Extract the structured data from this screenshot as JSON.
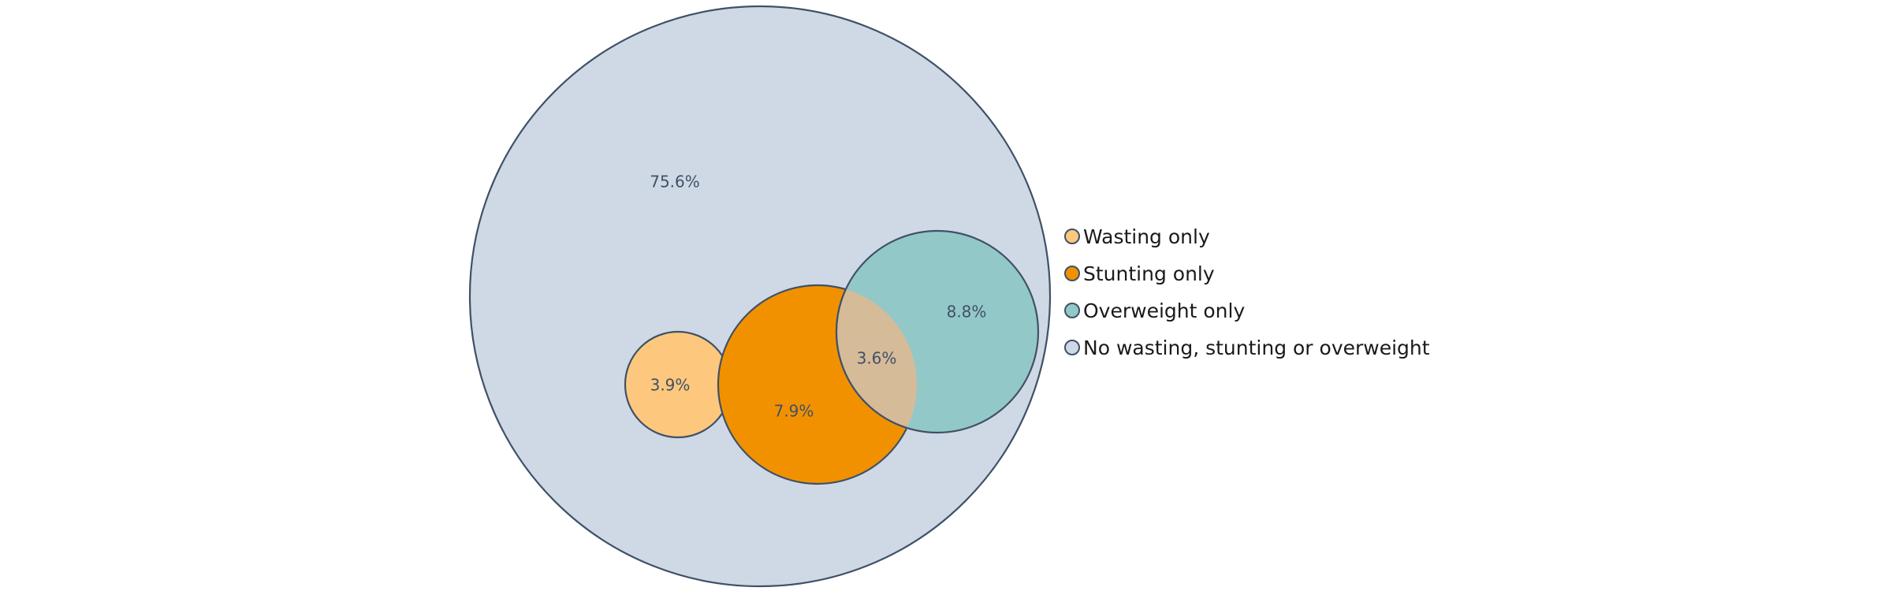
{
  "chart_data": {
    "type": "venn",
    "title": "",
    "sets": [
      {
        "key": "none",
        "name": "No wasting, stunting or overweight",
        "value": 75.6,
        "label": "75.6%",
        "color": "#cfd9e5"
      },
      {
        "key": "wasting",
        "name": "Wasting only",
        "value": 3.9,
        "label": "3.9%",
        "color": "#fdc87d"
      },
      {
        "key": "stunting",
        "name": "Stunting only",
        "value": 7.9,
        "label": "7.9%",
        "color": "#f29100"
      },
      {
        "key": "overweight",
        "name": "Overweight only",
        "value": 8.8,
        "label": "8.8%",
        "color": "#93c8c8"
      }
    ],
    "intersections": [
      {
        "sets": [
          "stunting",
          "overweight"
        ],
        "value": 3.6,
        "label": "3.6%",
        "color": "#d6bb98"
      }
    ],
    "legend": {
      "position": "right",
      "items": [
        "Wasting only",
        "Stunting only",
        "Overweight only",
        "No wasting, stunting or overweight"
      ]
    }
  }
}
